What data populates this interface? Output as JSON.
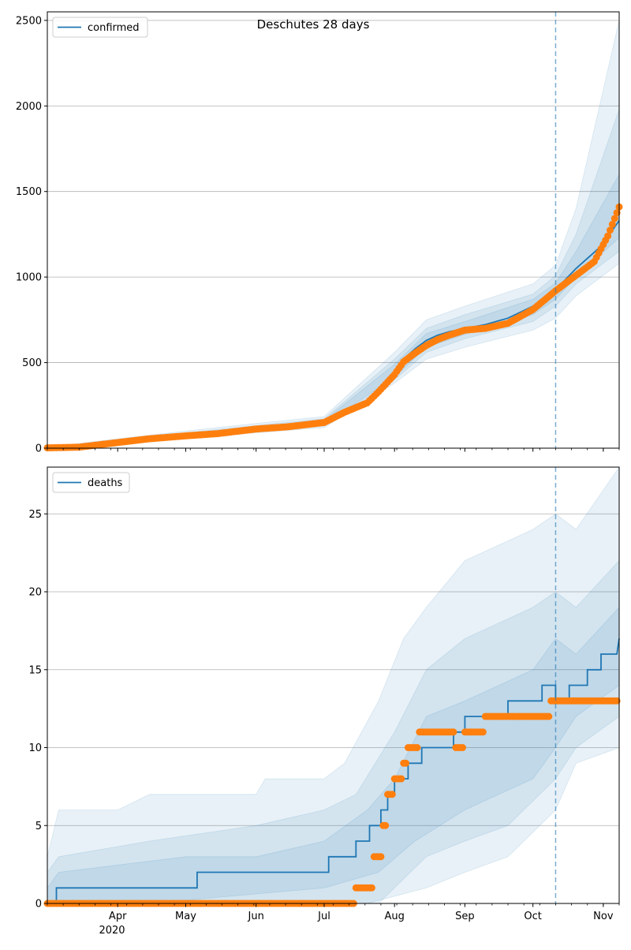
{
  "figure": {
    "title": "Deschutes 28 days"
  },
  "colors": {
    "model": "#1f77b4",
    "observed": "#ff7f0e",
    "band": "#1f77b4",
    "grid": "#b0b0b0",
    "forecast_line": "#1f77b4"
  },
  "forecast_start": "2020-10-11",
  "x_axis": {
    "range": [
      "2020-03-01",
      "2020-11-08"
    ],
    "ticks": [
      {
        "date": "2020-04-01",
        "label": "Apr"
      },
      {
        "date": "2020-05-01",
        "label": "May"
      },
      {
        "date": "2020-06-01",
        "label": "Jun"
      },
      {
        "date": "2020-07-01",
        "label": "Jul"
      },
      {
        "date": "2020-08-01",
        "label": "Aug"
      },
      {
        "date": "2020-09-01",
        "label": "Sep"
      },
      {
        "date": "2020-10-01",
        "label": "Oct"
      },
      {
        "date": "2020-11-01",
        "label": "Nov"
      }
    ],
    "year_label": "2020"
  },
  "chart_data": [
    {
      "type": "line",
      "legend": "confirmed",
      "legend_position": "top-left",
      "grid": "horizontal",
      "ylim": [
        0,
        2550
      ],
      "yticks": [
        0,
        500,
        1000,
        1500,
        2000,
        2500
      ],
      "model": [
        [
          "2020-03-01",
          0
        ],
        [
          "2020-03-15",
          6
        ],
        [
          "2020-04-01",
          35
        ],
        [
          "2020-04-15",
          55
        ],
        [
          "2020-05-01",
          72
        ],
        [
          "2020-05-15",
          85
        ],
        [
          "2020-06-01",
          115
        ],
        [
          "2020-06-15",
          128
        ],
        [
          "2020-07-01",
          150
        ],
        [
          "2020-07-10",
          195
        ],
        [
          "2020-07-20",
          260
        ],
        [
          "2020-07-25",
          320
        ],
        [
          "2020-08-01",
          440
        ],
        [
          "2020-08-05",
          520
        ],
        [
          "2020-08-10",
          580
        ],
        [
          "2020-08-15",
          630
        ],
        [
          "2020-08-20",
          660
        ],
        [
          "2020-08-25",
          680
        ],
        [
          "2020-09-01",
          700
        ],
        [
          "2020-09-10",
          722
        ],
        [
          "2020-09-20",
          760
        ],
        [
          "2020-10-01",
          830
        ],
        [
          "2020-10-11",
          925
        ],
        [
          "2020-10-20",
          1050
        ],
        [
          "2020-10-31",
          1180
        ],
        [
          "2020-11-08",
          1330
        ]
      ],
      "observed": [
        [
          "2020-03-01",
          2
        ],
        [
          "2020-03-15",
          6
        ],
        [
          "2020-04-01",
          33
        ],
        [
          "2020-04-15",
          55
        ],
        [
          "2020-05-01",
          72
        ],
        [
          "2020-05-15",
          85
        ],
        [
          "2020-06-01",
          112
        ],
        [
          "2020-06-15",
          125
        ],
        [
          "2020-07-01",
          150
        ],
        [
          "2020-07-10",
          210
        ],
        [
          "2020-07-20",
          265
        ],
        [
          "2020-07-25",
          330
        ],
        [
          "2020-08-01",
          430
        ],
        [
          "2020-08-05",
          505
        ],
        [
          "2020-08-10",
          555
        ],
        [
          "2020-08-15",
          600
        ],
        [
          "2020-08-20",
          635
        ],
        [
          "2020-08-25",
          660
        ],
        [
          "2020-09-01",
          690
        ],
        [
          "2020-09-10",
          700
        ],
        [
          "2020-09-20",
          730
        ],
        [
          "2020-10-01",
          810
        ],
        [
          "2020-10-11",
          920
        ],
        [
          "2020-10-20",
          1010
        ],
        [
          "2020-10-28",
          1090
        ],
        [
          "2020-11-03",
          1240
        ],
        [
          "2020-11-08",
          1410
        ]
      ],
      "bands": [
        {
          "lower": [
            [
              "2020-03-01",
              0
            ],
            [
              "2020-04-01",
              20
            ],
            [
              "2020-05-01",
              55
            ],
            [
              "2020-06-01",
              90
            ],
            [
              "2020-07-01",
              120
            ],
            [
              "2020-08-01",
              380
            ],
            [
              "2020-08-15",
              520
            ],
            [
              "2020-09-01",
              590
            ],
            [
              "2020-10-01",
              690
            ],
            [
              "2020-10-11",
              760
            ],
            [
              "2020-10-20",
              890
            ],
            [
              "2020-11-08",
              1080
            ]
          ],
          "upper": [
            [
              "2020-03-01",
              5
            ],
            [
              "2020-04-01",
              55
            ],
            [
              "2020-05-01",
              100
            ],
            [
              "2020-06-01",
              145
            ],
            [
              "2020-07-01",
              185
            ],
            [
              "2020-08-01",
              560
            ],
            [
              "2020-08-15",
              750
            ],
            [
              "2020-09-01",
              830
            ],
            [
              "2020-10-01",
              960
            ],
            [
              "2020-10-11",
              1070
            ],
            [
              "2020-10-20",
              1400
            ],
            [
              "2020-11-08",
              2500
            ]
          ]
        },
        {
          "lower": [
            [
              "2020-03-01",
              0
            ],
            [
              "2020-04-01",
              25
            ],
            [
              "2020-05-01",
              62
            ],
            [
              "2020-06-01",
              100
            ],
            [
              "2020-07-01",
              130
            ],
            [
              "2020-08-01",
              400
            ],
            [
              "2020-08-15",
              560
            ],
            [
              "2020-09-01",
              640
            ],
            [
              "2020-10-01",
              740
            ],
            [
              "2020-10-11",
              830
            ],
            [
              "2020-10-20",
              960
            ],
            [
              "2020-11-08",
              1150
            ]
          ],
          "upper": [
            [
              "2020-03-01",
              3
            ],
            [
              "2020-04-01",
              48
            ],
            [
              "2020-05-01",
              90
            ],
            [
              "2020-06-01",
              132
            ],
            [
              "2020-07-01",
              172
            ],
            [
              "2020-08-01",
              520
            ],
            [
              "2020-08-15",
              700
            ],
            [
              "2020-09-01",
              780
            ],
            [
              "2020-10-01",
              900
            ],
            [
              "2020-10-11",
              1010
            ],
            [
              "2020-10-20",
              1250
            ],
            [
              "2020-11-08",
              1980
            ]
          ]
        },
        {
          "lower": [
            [
              "2020-03-01",
              0
            ],
            [
              "2020-04-01",
              29
            ],
            [
              "2020-05-01",
              66
            ],
            [
              "2020-06-01",
              106
            ],
            [
              "2020-07-01",
              138
            ],
            [
              "2020-08-01",
              415
            ],
            [
              "2020-08-15",
              590
            ],
            [
              "2020-09-01",
              665
            ],
            [
              "2020-10-01",
              780
            ],
            [
              "2020-10-11",
              870
            ],
            [
              "2020-10-20",
              1000
            ],
            [
              "2020-11-08",
              1230
            ]
          ],
          "upper": [
            [
              "2020-03-01",
              2
            ],
            [
              "2020-04-01",
              42
            ],
            [
              "2020-05-01",
              82
            ],
            [
              "2020-06-01",
              124
            ],
            [
              "2020-07-01",
              163
            ],
            [
              "2020-08-01",
              490
            ],
            [
              "2020-08-15",
              670
            ],
            [
              "2020-09-01",
              740
            ],
            [
              "2020-10-01",
              870
            ],
            [
              "2020-10-11",
              965
            ],
            [
              "2020-10-20",
              1150
            ],
            [
              "2020-11-08",
              1600
            ]
          ]
        }
      ]
    },
    {
      "type": "line",
      "legend": "deaths",
      "legend_position": "top-left",
      "grid": "horizontal",
      "ylim": [
        0,
        28
      ],
      "yticks": [
        0,
        5,
        10,
        15,
        20,
        25
      ],
      "model": [
        [
          "2020-03-01",
          0
        ],
        [
          "2020-03-05",
          0
        ],
        [
          "2020-03-05",
          1
        ],
        [
          "2020-05-06",
          1
        ],
        [
          "2020-05-06",
          2
        ],
        [
          "2020-07-03",
          2
        ],
        [
          "2020-07-03",
          3
        ],
        [
          "2020-07-15",
          3
        ],
        [
          "2020-07-15",
          4
        ],
        [
          "2020-07-21",
          4
        ],
        [
          "2020-07-21",
          5
        ],
        [
          "2020-07-26",
          5
        ],
        [
          "2020-07-26",
          6
        ],
        [
          "2020-07-29",
          6
        ],
        [
          "2020-07-29",
          7
        ],
        [
          "2020-08-01",
          7
        ],
        [
          "2020-08-01",
          8
        ],
        [
          "2020-08-07",
          8
        ],
        [
          "2020-08-07",
          9
        ],
        [
          "2020-08-13",
          9
        ],
        [
          "2020-08-13",
          10
        ],
        [
          "2020-08-27",
          10
        ],
        [
          "2020-08-27",
          11
        ],
        [
          "2020-09-01",
          11
        ],
        [
          "2020-09-01",
          12
        ],
        [
          "2020-09-20",
          12
        ],
        [
          "2020-09-20",
          13
        ],
        [
          "2020-10-05",
          13
        ],
        [
          "2020-10-05",
          14
        ],
        [
          "2020-10-11",
          14
        ],
        [
          "2020-10-11",
          13
        ],
        [
          "2020-10-17",
          13
        ],
        [
          "2020-10-17",
          14
        ],
        [
          "2020-10-25",
          14
        ],
        [
          "2020-10-25",
          15
        ],
        [
          "2020-10-31",
          15
        ],
        [
          "2020-10-31",
          16
        ],
        [
          "2020-11-07",
          16
        ],
        [
          "2020-11-08",
          17
        ]
      ],
      "observed": [
        [
          "2020-03-01",
          0
        ],
        [
          "2020-03-20",
          0
        ],
        [
          "2020-04-10",
          0
        ],
        [
          "2020-05-01",
          0
        ],
        [
          "2020-05-20",
          0
        ],
        [
          "2020-06-10",
          0
        ],
        [
          "2020-07-01",
          0
        ],
        [
          "2020-07-13",
          0
        ],
        [
          "2020-07-15",
          1
        ],
        [
          "2020-07-19",
          1
        ],
        [
          "2020-07-23",
          3
        ],
        [
          "2020-07-27",
          5
        ],
        [
          "2020-07-29",
          7
        ],
        [
          "2020-08-01",
          8
        ],
        [
          "2020-08-05",
          9
        ],
        [
          "2020-08-07",
          10
        ],
        [
          "2020-08-12",
          11
        ],
        [
          "2020-08-20",
          11
        ],
        [
          "2020-08-28",
          10
        ],
        [
          "2020-09-01",
          11
        ],
        [
          "2020-09-07",
          11
        ],
        [
          "2020-09-10",
          12
        ],
        [
          "2020-09-20",
          12
        ],
        [
          "2020-10-01",
          12
        ],
        [
          "2020-10-09",
          13
        ],
        [
          "2020-10-20",
          13
        ],
        [
          "2020-11-01",
          13
        ],
        [
          "2020-11-07",
          13
        ]
      ],
      "bands": [
        {
          "lower": [
            [
              "2020-03-01",
              0
            ],
            [
              "2020-07-20",
              0
            ],
            [
              "2020-08-15",
              1
            ],
            [
              "2020-09-01",
              2
            ],
            [
              "2020-09-20",
              3
            ],
            [
              "2020-10-04",
              5
            ],
            [
              "2020-10-11",
              6
            ],
            [
              "2020-10-20",
              9
            ],
            [
              "2020-11-08",
              10
            ]
          ],
          "upper": [
            [
              "2020-03-01",
              3
            ],
            [
              "2020-03-06",
              6
            ],
            [
              "2020-04-01",
              6
            ],
            [
              "2020-04-15",
              7
            ],
            [
              "2020-06-01",
              7
            ],
            [
              "2020-06-05",
              8
            ],
            [
              "2020-07-01",
              8
            ],
            [
              "2020-07-10",
              9
            ],
            [
              "2020-07-25",
              13
            ],
            [
              "2020-08-05",
              17
            ],
            [
              "2020-08-15",
              19
            ],
            [
              "2020-09-01",
              22
            ],
            [
              "2020-10-01",
              24
            ],
            [
              "2020-10-11",
              25
            ],
            [
              "2020-10-20",
              24
            ],
            [
              "2020-11-08",
              28
            ]
          ]
        },
        {
          "lower": [
            [
              "2020-03-01",
              0
            ],
            [
              "2020-07-25",
              0
            ],
            [
              "2020-08-15",
              3
            ],
            [
              "2020-09-01",
              4
            ],
            [
              "2020-09-20",
              5
            ],
            [
              "2020-10-11",
              8
            ],
            [
              "2020-10-20",
              10
            ],
            [
              "2020-11-08",
              12
            ]
          ],
          "upper": [
            [
              "2020-03-01",
              2
            ],
            [
              "2020-03-06",
              3
            ],
            [
              "2020-04-15",
              4
            ],
            [
              "2020-06-01",
              5
            ],
            [
              "2020-07-01",
              6
            ],
            [
              "2020-07-15",
              7
            ],
            [
              "2020-08-01",
              11
            ],
            [
              "2020-08-15",
              15
            ],
            [
              "2020-09-01",
              17
            ],
            [
              "2020-10-01",
              19
            ],
            [
              "2020-10-11",
              20
            ],
            [
              "2020-10-20",
              19
            ],
            [
              "2020-11-08",
              22
            ]
          ]
        },
        {
          "lower": [
            [
              "2020-03-01",
              0
            ],
            [
              "2020-04-15",
              0
            ],
            [
              "2020-07-01",
              1
            ],
            [
              "2020-07-25",
              2
            ],
            [
              "2020-08-10",
              4
            ],
            [
              "2020-09-01",
              6
            ],
            [
              "2020-10-01",
              8
            ],
            [
              "2020-10-11",
              10
            ],
            [
              "2020-10-20",
              12
            ],
            [
              "2020-11-08",
              14
            ]
          ],
          "upper": [
            [
              "2020-03-01",
              1
            ],
            [
              "2020-03-06",
              2
            ],
            [
              "2020-05-01",
              3
            ],
            [
              "2020-06-01",
              3
            ],
            [
              "2020-07-01",
              4
            ],
            [
              "2020-07-20",
              6
            ],
            [
              "2020-08-01",
              8
            ],
            [
              "2020-08-15",
              12
            ],
            [
              "2020-09-01",
              13
            ],
            [
              "2020-10-01",
              15
            ],
            [
              "2020-10-11",
              17
            ],
            [
              "2020-10-20",
              16
            ],
            [
              "2020-11-08",
              19
            ]
          ]
        }
      ]
    }
  ]
}
